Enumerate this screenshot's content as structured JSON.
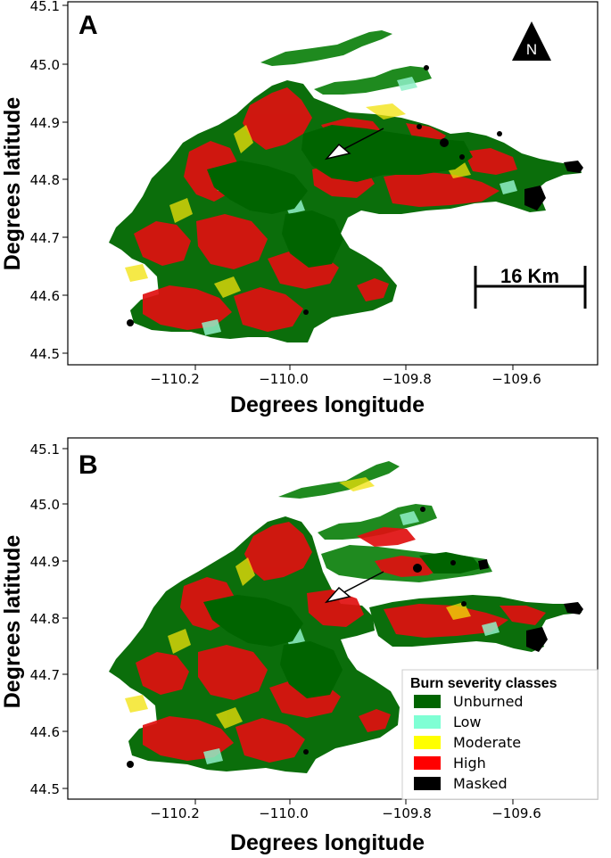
{
  "colors": {
    "unburned": "#006400",
    "low": "#7FFFD4",
    "moderate": "#FFFF00",
    "high": "#FF0000",
    "masked": "#000000",
    "frame": "#000000"
  },
  "panels": [
    {
      "letter": "A",
      "xlabel": "Degrees longitude",
      "ylabel": "Degrees latitude",
      "xticks": [
        "−110.2",
        "−110.0",
        "−109.8",
        "−109.6"
      ],
      "yticks": [
        "45.1",
        "45.0",
        "44.9",
        "44.8",
        "44.7",
        "44.6",
        "44.5"
      ],
      "north_label": "N",
      "scale_bar_label": "16 Km"
    },
    {
      "letter": "B",
      "xlabel": "Degrees longitude",
      "ylabel": "Degrees latitude",
      "xticks": [
        "−110.2",
        "−110.0",
        "−109.8",
        "−109.6"
      ],
      "yticks": [
        "45.1",
        "45.0",
        "44.9",
        "44.8",
        "44.7",
        "44.6",
        "44.5"
      ],
      "legend": {
        "title": "Burn severity classes",
        "items": [
          {
            "label": "Unburned",
            "color": "#006400"
          },
          {
            "label": "Low",
            "color": "#7FFFD4"
          },
          {
            "label": "Moderate",
            "color": "#FFFF00"
          },
          {
            "label": "High",
            "color": "#FF0000"
          },
          {
            "label": "Masked",
            "color": "#000000"
          }
        ]
      }
    }
  ]
}
